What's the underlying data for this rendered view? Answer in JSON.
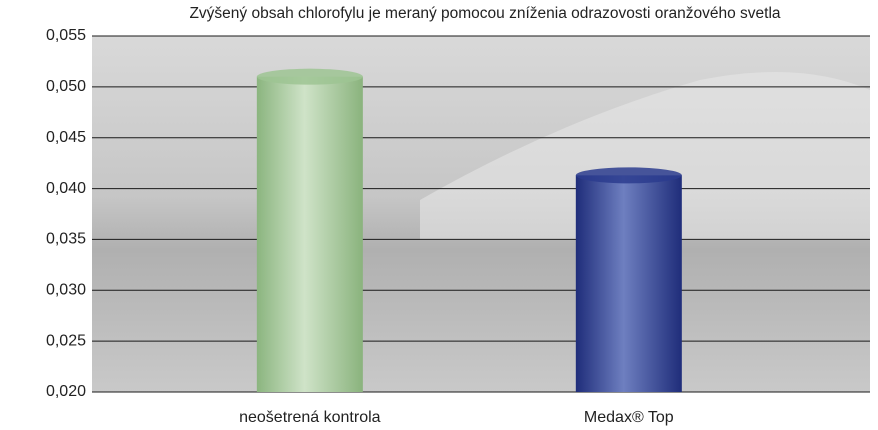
{
  "chart_data": {
    "type": "bar",
    "title": "Zvýšený obsah chlorofylu je meraný pomocou zníženia odrazovosti oranžového svetla",
    "categories": [
      "neošetrená kontrola",
      "Medax® Top"
    ],
    "series": [
      {
        "colors": [
          "#9dc493",
          "#2c3c8e"
        ],
        "values": [
          0.051,
          0.0413
        ]
      }
    ],
    "ylim": [
      0.02,
      0.055
    ],
    "yticks": [
      {
        "value": 0.02,
        "label": "0,020"
      },
      {
        "value": 0.025,
        "label": "0,025"
      },
      {
        "value": 0.03,
        "label": "0,030"
      },
      {
        "value": 0.035,
        "label": "0,035"
      },
      {
        "value": 0.04,
        "label": "0,040"
      },
      {
        "value": 0.045,
        "label": "0,045"
      },
      {
        "value": 0.05,
        "label": "0,050"
      },
      {
        "value": 0.055,
        "label": "0,055"
      }
    ],
    "grid": true
  }
}
